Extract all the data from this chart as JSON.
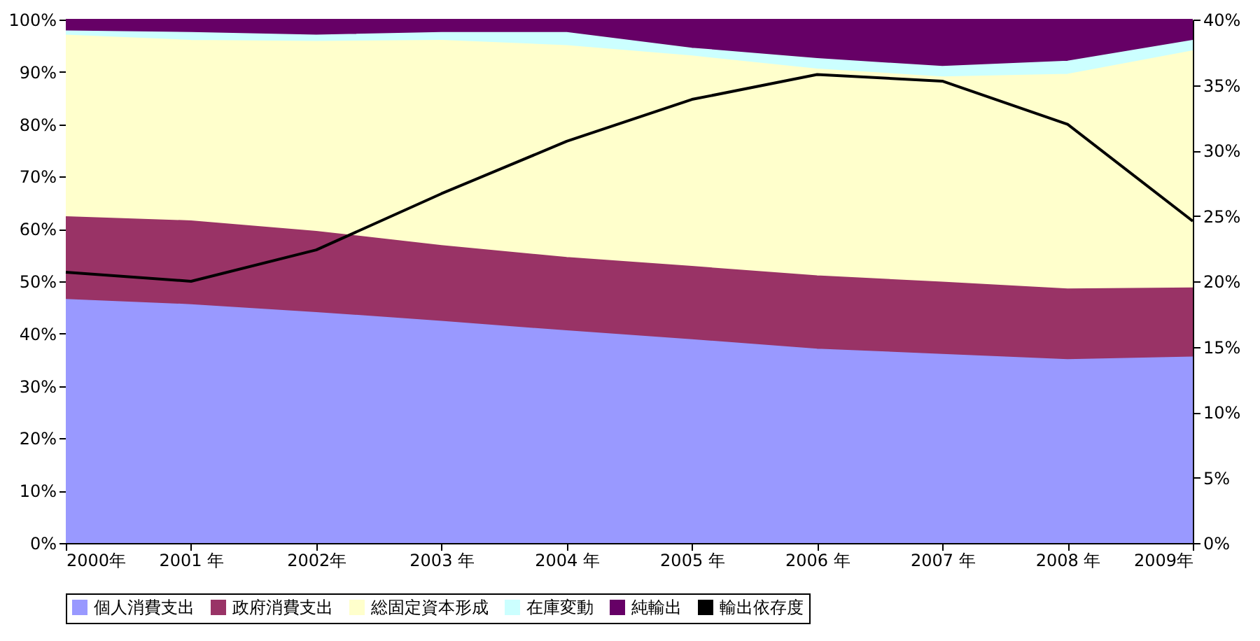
{
  "chart_data": {
    "type": "area",
    "stacked": true,
    "categories": [
      "2000年",
      "2001 年",
      "2002年",
      "2003 年",
      "2004 年",
      "2005 年",
      "2006 年",
      "2007 年",
      "2008 年",
      "2009年"
    ],
    "series": [
      {
        "name": "個人消費支出",
        "color": "#9999ff",
        "values": [
          46.5,
          45.5,
          44,
          42.3,
          40.5,
          38.8,
          37,
          36,
          35,
          35.5
        ]
      },
      {
        "name": "政府消費支出",
        "color": "#993366",
        "values": [
          15.8,
          16,
          15.5,
          14.5,
          14,
          14,
          14,
          13.8,
          13.5,
          13.2
        ]
      },
      {
        "name": "総固定資本形成",
        "color": "#ffffcc",
        "values": [
          34.7,
          34.5,
          36.3,
          39.2,
          40.5,
          40.2,
          39.5,
          39.2,
          41,
          45.3
        ]
      },
      {
        "name": "在庫変動",
        "color": "#ccffff",
        "values": [
          0.8,
          1.5,
          1.2,
          1.5,
          2.5,
          1.5,
          2,
          2,
          2.5,
          2
        ]
      },
      {
        "name": "純輸出",
        "color": "#660066",
        "values": [
          2.2,
          2.5,
          3,
          2.5,
          2.5,
          5.5,
          7.5,
          9,
          8,
          4
        ]
      },
      {
        "name": "輸出依存度",
        "color": "#000000",
        "type": "line",
        "axis": "y2",
        "values": [
          20.7,
          20.0,
          22.4,
          26.7,
          30.7,
          33.9,
          35.8,
          35.3,
          32.0,
          24.6
        ]
      }
    ],
    "ylim": [
      0,
      100
    ],
    "yticks": [
      {
        "value": 0,
        "label": "0%"
      },
      {
        "value": 10,
        "label": "10%"
      },
      {
        "value": 20,
        "label": "20%"
      },
      {
        "value": 30,
        "label": "30%"
      },
      {
        "value": 40,
        "label": "40%"
      },
      {
        "value": 50,
        "label": "50%"
      },
      {
        "value": 60,
        "label": "60%"
      },
      {
        "value": 70,
        "label": "70%"
      },
      {
        "value": 80,
        "label": "80%"
      },
      {
        "value": 90,
        "label": "90%"
      },
      {
        "value": 100,
        "label": "100%"
      }
    ],
    "y2lim": [
      0,
      40
    ],
    "y2ticks": [
      {
        "value": 0,
        "label": "0%"
      },
      {
        "value": 5,
        "label": "5%"
      },
      {
        "value": 10,
        "label": "10%"
      },
      {
        "value": 15,
        "label": "15%"
      },
      {
        "value": 20,
        "label": "20%"
      },
      {
        "value": 25,
        "label": "25%"
      },
      {
        "value": 30,
        "label": "30%"
      },
      {
        "value": 35,
        "label": "35%"
      },
      {
        "value": 40,
        "label": "40%"
      }
    ],
    "legend": "bottom"
  }
}
